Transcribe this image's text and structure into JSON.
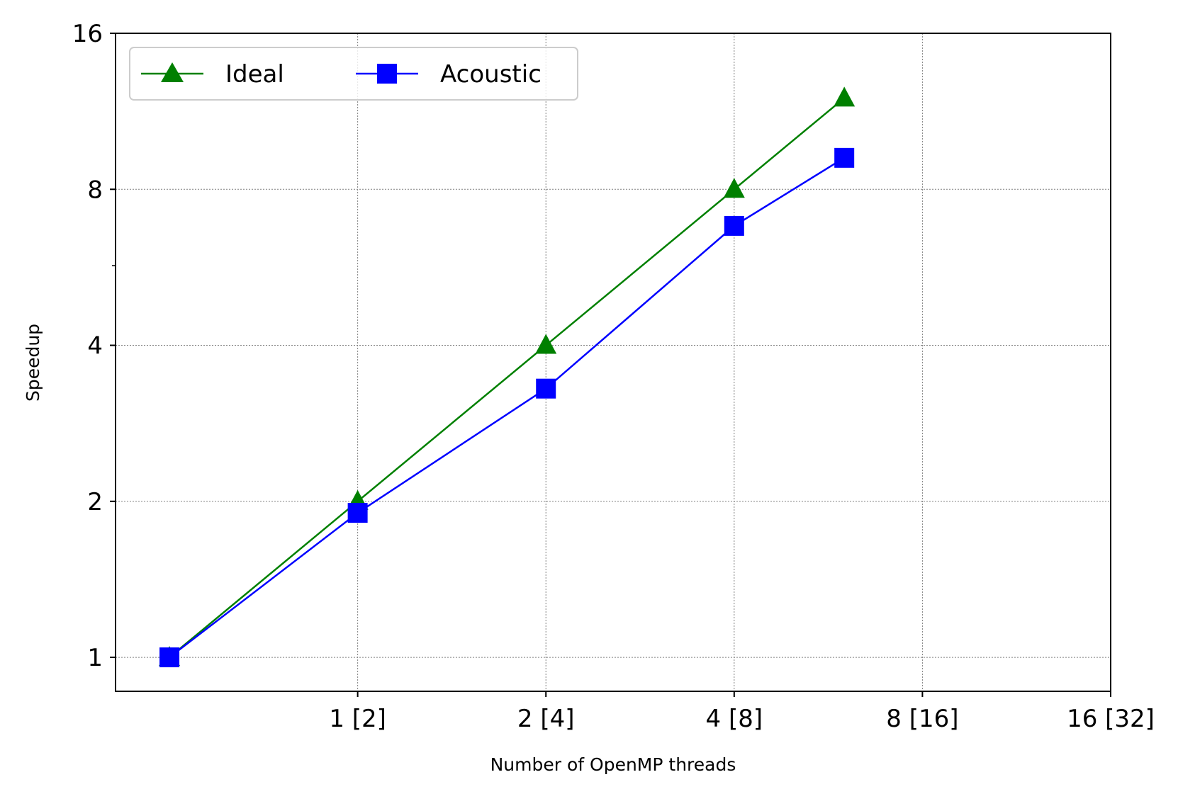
{
  "chart_data": {
    "type": "line",
    "xlabel": "Number of OpenMP threads",
    "ylabel": "Speedup",
    "x_scale": "log2",
    "y_scale": "log2",
    "xlim": [
      0.41,
      16
    ],
    "ylim": [
      0.86,
      16
    ],
    "x_ticks": [
      {
        "value": 1,
        "label": "1 [2]"
      },
      {
        "value": 2,
        "label": "2 [4]"
      },
      {
        "value": 4,
        "label": "4 [8]"
      },
      {
        "value": 8,
        "label": "8 [16]"
      },
      {
        "value": 16,
        "label": "16 [32]"
      }
    ],
    "y_ticks": [
      {
        "value": 1,
        "label": "1"
      },
      {
        "value": 2,
        "label": "2"
      },
      {
        "value": 4,
        "label": "4"
      },
      {
        "value": 8,
        "label": "8"
      },
      {
        "value": 16,
        "label": "16"
      }
    ],
    "y_minor_ticks": [
      5.7
    ],
    "grid": true,
    "legend_position": "top-left",
    "series": [
      {
        "name": "Ideal",
        "color": "#008000",
        "marker": "triangle",
        "x": [
          0.5,
          1,
          2,
          4,
          6
        ],
        "y": [
          1,
          2,
          4,
          8,
          12
        ]
      },
      {
        "name": "Acoustic",
        "color": "#0000ff",
        "marker": "square",
        "x": [
          0.5,
          1,
          2,
          4,
          6
        ],
        "y": [
          1,
          1.9,
          3.3,
          6.8,
          9.2
        ]
      }
    ]
  }
}
